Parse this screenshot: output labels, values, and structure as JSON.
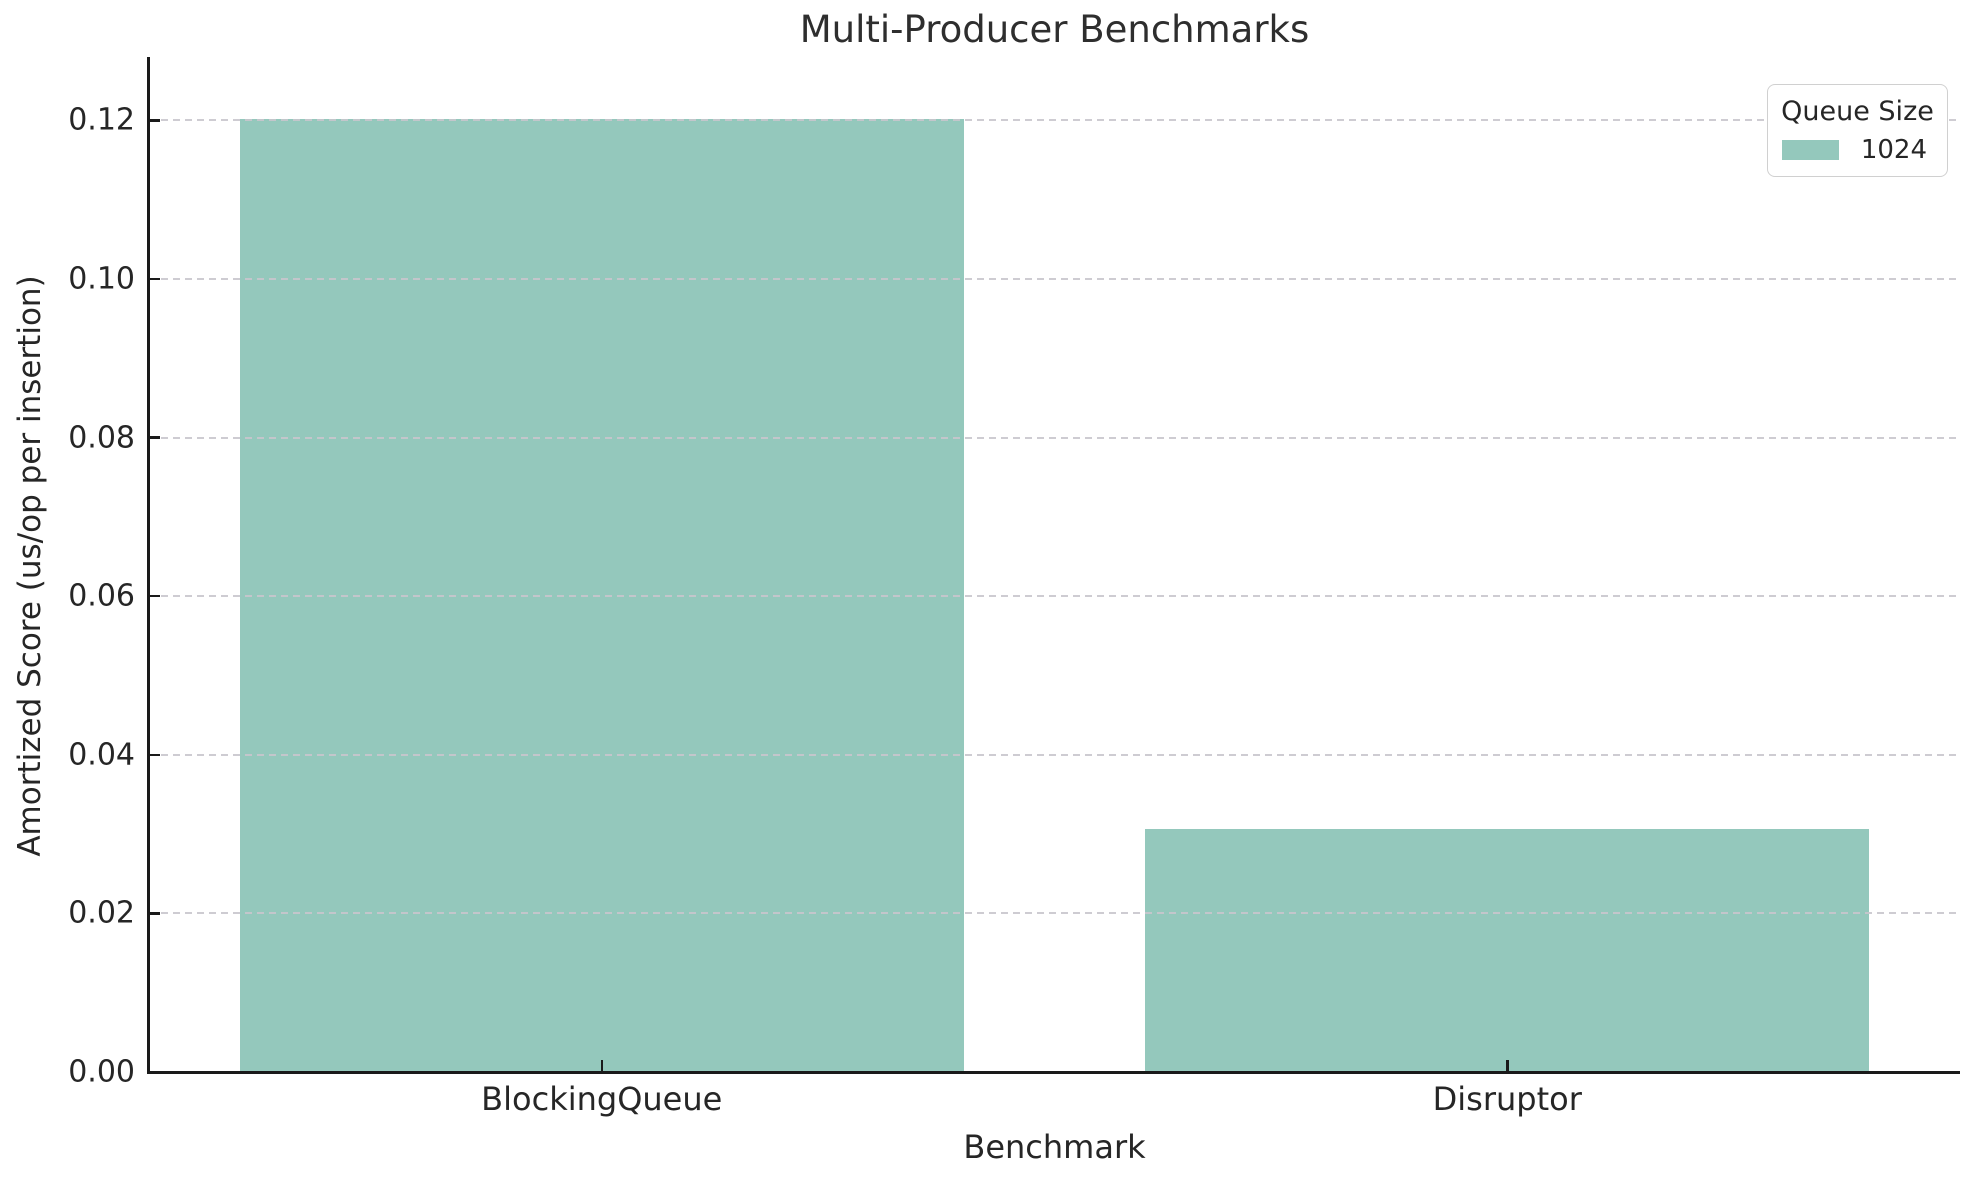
{
  "chart_data": {
    "type": "bar",
    "title": "Multi-Producer Benchmarks",
    "xlabel": "Benchmark",
    "ylabel": "Amortized Score (us/op per insertion)",
    "categories": [
      "BlockingQueue",
      "Disruptor"
    ],
    "series": [
      {
        "name": "1024",
        "color": "#94c8bc",
        "values": [
          0.1202,
          0.0307
        ]
      }
    ],
    "ylim": [
      0,
      0.128
    ],
    "yticks": [
      {
        "value": 0,
        "label": "0.00"
      },
      {
        "value": 0.02,
        "label": "0.02"
      },
      {
        "value": 0.04,
        "label": "0.04"
      },
      {
        "value": 0.06,
        "label": "0.06"
      },
      {
        "value": 0.08,
        "label": "0.08"
      },
      {
        "value": 0.1,
        "label": "0.10"
      },
      {
        "value": 0.12,
        "label": "0.12"
      }
    ],
    "grid": {
      "axis": "y",
      "style": "dashed",
      "drawn_above_bars": true,
      "color": "#c8c6cd"
    },
    "bar_width_fraction": 0.8,
    "legend": {
      "title": "Queue Size",
      "position": "upper right",
      "entries": [
        {
          "label": "1024",
          "color": "#94c8bc"
        }
      ]
    },
    "axis_color": "#1a1a1a",
    "text_color": "#262626"
  }
}
